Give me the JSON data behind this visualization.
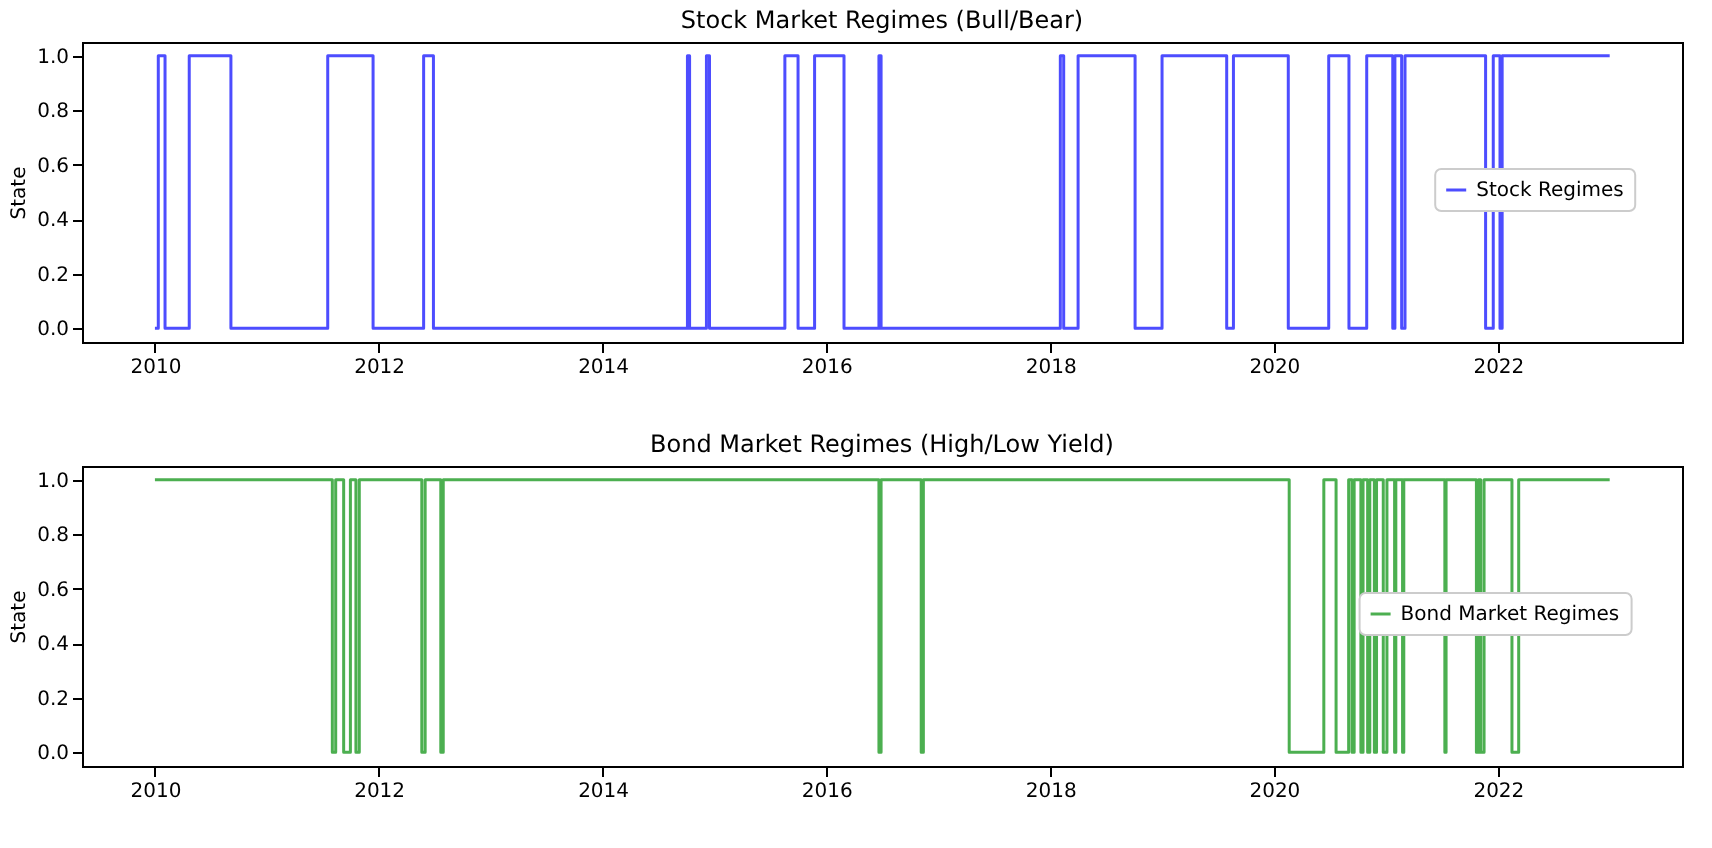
{
  "chart_data": [
    {
      "type": "step",
      "title": "Stock Market Regimes (Bull/Bear)",
      "ylabel": "State",
      "legend": "right",
      "x": [
        "2010-01-01",
        "2010-01-12",
        "2010-02-03",
        "2010-04-23",
        "2010-09-06",
        "2011-07-19",
        "2011-12-14",
        "2012-05-27",
        "2012-06-28",
        "2014-10-05",
        "2014-10-12",
        "2014-12-06",
        "2014-12-16",
        "2015-08-19",
        "2015-10-01",
        "2015-11-24",
        "2016-02-28",
        "2016-06-21",
        "2016-06-28",
        "2018-02-03",
        "2018-02-14",
        "2018-04-02",
        "2018-10-05",
        "2019-01-01",
        "2019-07-31",
        "2019-08-22",
        "2020-02-17",
        "2020-06-28",
        "2020-09-02",
        "2020-10-30",
        "2021-01-23",
        "2021-01-30",
        "2021-02-21",
        "2021-03-04",
        "2021-11-22",
        "2021-12-17",
        "2022-01-08",
        "2022-01-15",
        "2023-01-01"
      ],
      "series": [
        {
          "name": "Stock Regimes",
          "color": "#4d4dff",
          "values": [
            0,
            1,
            0,
            1,
            0,
            1,
            0,
            1,
            0,
            1,
            0,
            1,
            0,
            1,
            0,
            1,
            0,
            1,
            0,
            1,
            0,
            1,
            0,
            1,
            0,
            1,
            0,
            1,
            0,
            1,
            0,
            1,
            0,
            1,
            0,
            1,
            0,
            1,
            1
          ]
        }
      ],
      "xlim": [
        "2009-05-08",
        "2023-08-25"
      ],
      "xticks": [
        "2010",
        "2012",
        "2014",
        "2016",
        "2018",
        "2020",
        "2022"
      ],
      "ylim": [
        -0.05,
        1.05
      ],
      "yticks": [
        {
          "value": 0,
          "label": "0.0"
        },
        {
          "value": 0.2,
          "label": "0.2"
        },
        {
          "value": 0.4,
          "label": "0.4"
        },
        {
          "value": 0.6,
          "label": "0.6"
        },
        {
          "value": 0.8,
          "label": "0.8"
        },
        {
          "value": 1,
          "label": "1.0"
        }
      ]
    },
    {
      "type": "step",
      "title": "Bond Market Regimes (High/Low Yield)",
      "ylabel": "State",
      "legend": "right",
      "x": [
        "2010-01-01",
        "2011-08-03",
        "2011-08-14",
        "2011-09-09",
        "2011-10-01",
        "2011-10-19",
        "2011-10-30",
        "2012-05-21",
        "2012-06-01",
        "2012-07-22",
        "2012-07-30",
        "2016-06-21",
        "2016-06-28",
        "2016-11-06",
        "2016-11-13",
        "2020-02-20",
        "2020-06-12",
        "2020-07-22",
        "2020-09-01",
        "2020-09-12",
        "2020-09-19",
        "2020-10-11",
        "2020-10-18",
        "2020-11-02",
        "2020-11-09",
        "2020-11-24",
        "2020-12-01",
        "2020-12-23",
        "2021-01-04",
        "2021-01-29",
        "2021-02-02",
        "2021-02-24",
        "2021-02-28",
        "2021-07-12",
        "2021-07-16",
        "2021-10-23",
        "2021-10-30",
        "2021-11-06",
        "2021-11-17",
        "2022-02-16",
        "2022-03-10",
        "2023-01-01"
      ],
      "series": [
        {
          "name": "Bond Market Regimes",
          "color": "#4caf50",
          "values": [
            1,
            0,
            1,
            0,
            1,
            0,
            1,
            0,
            1,
            0,
            1,
            0,
            1,
            0,
            1,
            0,
            1,
            0,
            1,
            0,
            1,
            0,
            1,
            0,
            1,
            0,
            1,
            0,
            1,
            0,
            1,
            0,
            1,
            0,
            1,
            0,
            1,
            0,
            1,
            0,
            1,
            1
          ]
        }
      ],
      "xlim": [
        "2009-05-08",
        "2023-08-25"
      ],
      "xticks": [
        "2010",
        "2012",
        "2014",
        "2016",
        "2018",
        "2020",
        "2022"
      ],
      "ylim": [
        -0.05,
        1.05
      ],
      "yticks": [
        {
          "value": 0,
          "label": "0.0"
        },
        {
          "value": 0.2,
          "label": "0.2"
        },
        {
          "value": 0.4,
          "label": "0.4"
        },
        {
          "value": 0.6,
          "label": "0.6"
        },
        {
          "value": 0.8,
          "label": "0.8"
        },
        {
          "value": 1,
          "label": "1.0"
        }
      ]
    }
  ]
}
